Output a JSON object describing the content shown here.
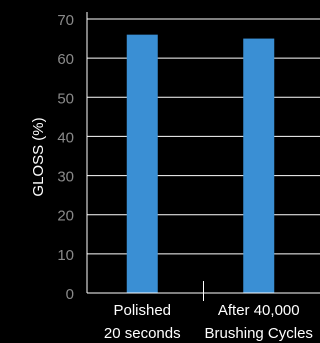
{
  "chart_data": {
    "type": "bar",
    "title": "",
    "xlabel": "",
    "ylabel": "GLOSS (%)",
    "categories": [
      [
        "Polished",
        "20 seconds"
      ],
      [
        "After 40,000",
        "Brushing Cycles"
      ]
    ],
    "values": [
      66,
      65
    ],
    "ylim": [
      0,
      70
    ],
    "yticks": [
      0,
      10,
      20,
      30,
      40,
      50,
      60,
      70
    ],
    "grid": true,
    "legend": "none",
    "colors": {
      "background": "#000000",
      "bar": "#3a8fd4",
      "grid": "#ffffff",
      "tick_label": "#8a8a8a",
      "label": "#ffffff"
    }
  }
}
